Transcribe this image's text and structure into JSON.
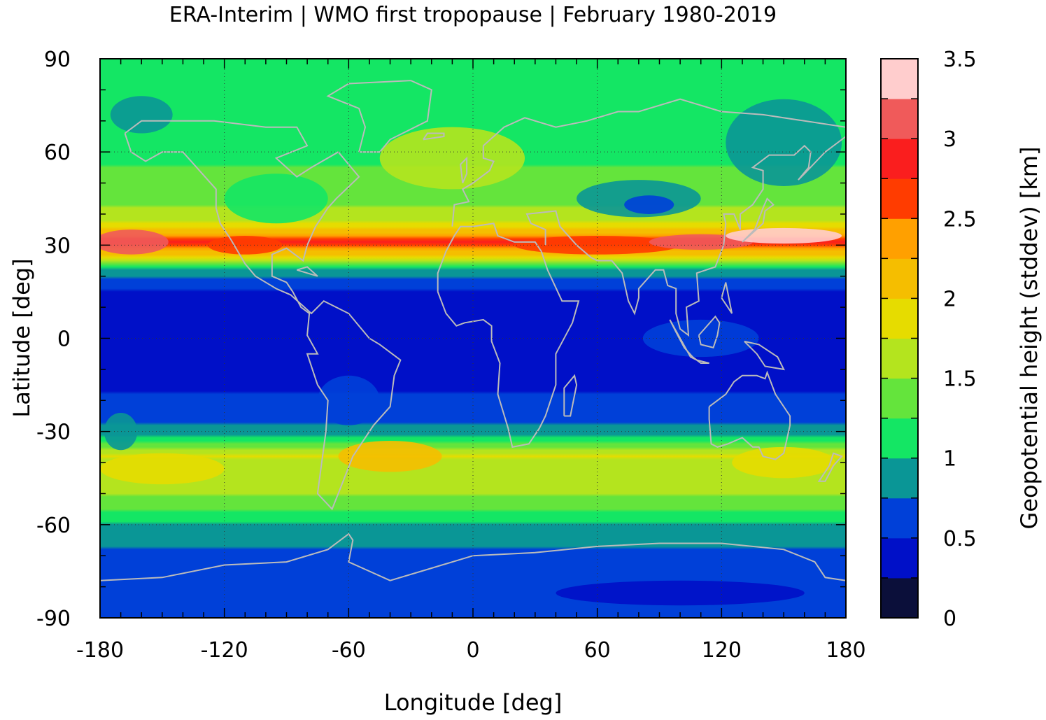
{
  "chart_data": {
    "type": "heatmap",
    "title": "ERA-Interim | WMO first tropopause | February 1980-2019",
    "xlabel": "Longitude [deg]",
    "ylabel": "Latitude [deg]",
    "xlim": [
      -180,
      180
    ],
    "ylim": [
      -90,
      90
    ],
    "x_ticks": [
      -180,
      -120,
      -60,
      0,
      60,
      120,
      180
    ],
    "y_ticks": [
      90,
      60,
      30,
      0,
      -30,
      -60,
      -90
    ],
    "x_tick_labels": [
      "-180",
      "-120",
      "-60",
      "0",
      "60",
      "120",
      "180"
    ],
    "y_tick_labels": [
      "90",
      "60",
      "30",
      "0",
      "-30",
      "-60",
      "-90"
    ],
    "grid": true,
    "colorbar": {
      "label": "Geopotential height (stddev) [km]",
      "range": [
        0,
        3.5
      ],
      "tick_labels": [
        "0",
        "0.5",
        "1",
        "1.5",
        "2",
        "2.5",
        "3",
        "3.5"
      ],
      "tick_values": [
        0,
        0.5,
        1,
        1.5,
        2,
        2.5,
        3,
        3.5
      ],
      "levels": [
        0,
        0.25,
        0.5,
        0.75,
        1,
        1.25,
        1.5,
        1.75,
        2,
        2.25,
        2.5,
        2.75,
        3,
        3.25,
        3.5
      ],
      "colors": [
        "#0b0f3a",
        "#0010c8",
        "#0040d8",
        "#0a9696",
        "#14e664",
        "#64e43c",
        "#b4e41e",
        "#e6dc00",
        "#f5be00",
        "#ffa000",
        "#ff3c00",
        "#fa1e1e",
        "#f05a5a",
        "#ffcdcd"
      ]
    },
    "zonal_mean_profile": {
      "lat": [
        -90,
        -75,
        -62,
        -55,
        -45,
        -38,
        -30,
        -15,
        0,
        15,
        22,
        27,
        31,
        36,
        45,
        55,
        65,
        80,
        90
      ],
      "value": [
        0.55,
        0.6,
        0.85,
        1.3,
        1.7,
        1.75,
        0.8,
        0.45,
        0.42,
        0.45,
        0.9,
        2.0,
        2.8,
        1.8,
        1.35,
        1.25,
        1.15,
        1.1,
        1.1
      ]
    },
    "coastline_color": "#bbbbbb"
  }
}
